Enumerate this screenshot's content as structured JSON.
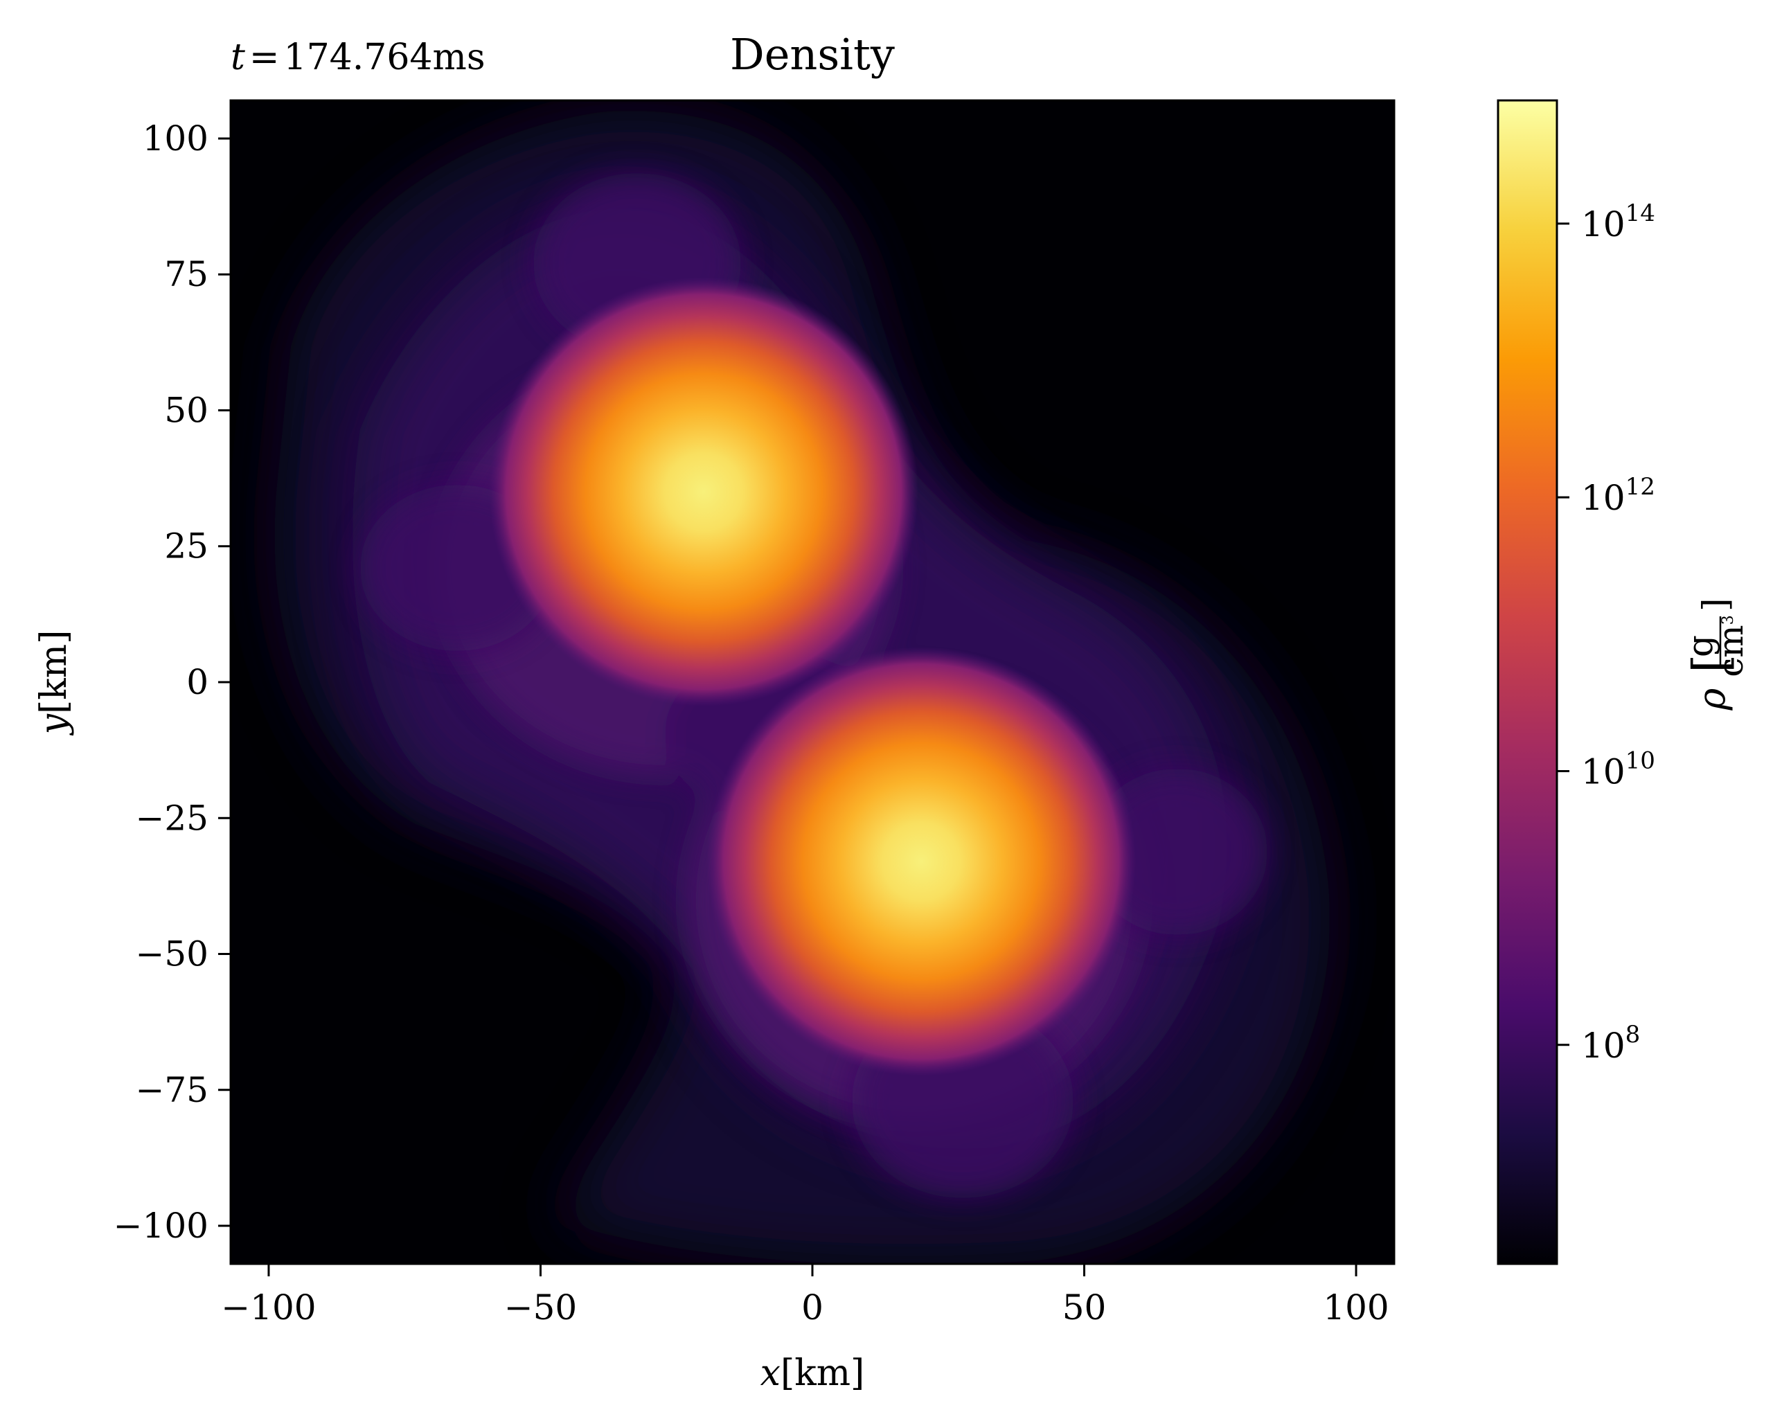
{
  "chart_data": {
    "type": "heatmap",
    "title": "Density",
    "time_label": {
      "var": "t",
      "eq": "=",
      "value": "174.764ms"
    },
    "xlabel": {
      "var": "x",
      "unit": "[km]"
    },
    "ylabel": {
      "var": "y",
      "unit": "[km]"
    },
    "xlim": [
      -107,
      107
    ],
    "ylim": [
      -107,
      107
    ],
    "x_ticks": [
      -100,
      -50,
      0,
      50,
      100
    ],
    "y_ticks": [
      -100,
      -75,
      -50,
      -25,
      0,
      25,
      50,
      75,
      100
    ],
    "x_tick_labels": [
      "−100",
      "−50",
      "0",
      "50",
      "100"
    ],
    "y_tick_labels": [
      "−100",
      "−75",
      "−50",
      "−25",
      "0",
      "25",
      "50",
      "75",
      "100"
    ],
    "colormap": "inferno",
    "colorbar": {
      "scale": "log",
      "range_log10": [
        6.4,
        14.9
      ],
      "ticks_log10": [
        8,
        10,
        12,
        14
      ],
      "tick_labels": [
        {
          "base": "10",
          "exp": "8"
        },
        {
          "base": "10",
          "exp": "10"
        },
        {
          "base": "10",
          "exp": "12"
        },
        {
          "base": "10",
          "exp": "14"
        }
      ],
      "label": {
        "var": "ρ",
        "num": "g",
        "den": "cm",
        "den_exp": "3"
      }
    },
    "cores": [
      {
        "x": -20,
        "y": 35,
        "peak_log10": 14.8
      },
      {
        "x": 20,
        "y": -33,
        "peak_log10": 14.8
      }
    ],
    "grid": false
  },
  "colors": {
    "background": "#000004",
    "frame": "#000000",
    "colormap_stops": [
      "#000004",
      "#1b0c41",
      "#4a0c6b",
      "#781c6d",
      "#a52c60",
      "#cf4446",
      "#ed6925",
      "#fb9b06",
      "#f7d13d",
      "#fcffa4"
    ]
  }
}
